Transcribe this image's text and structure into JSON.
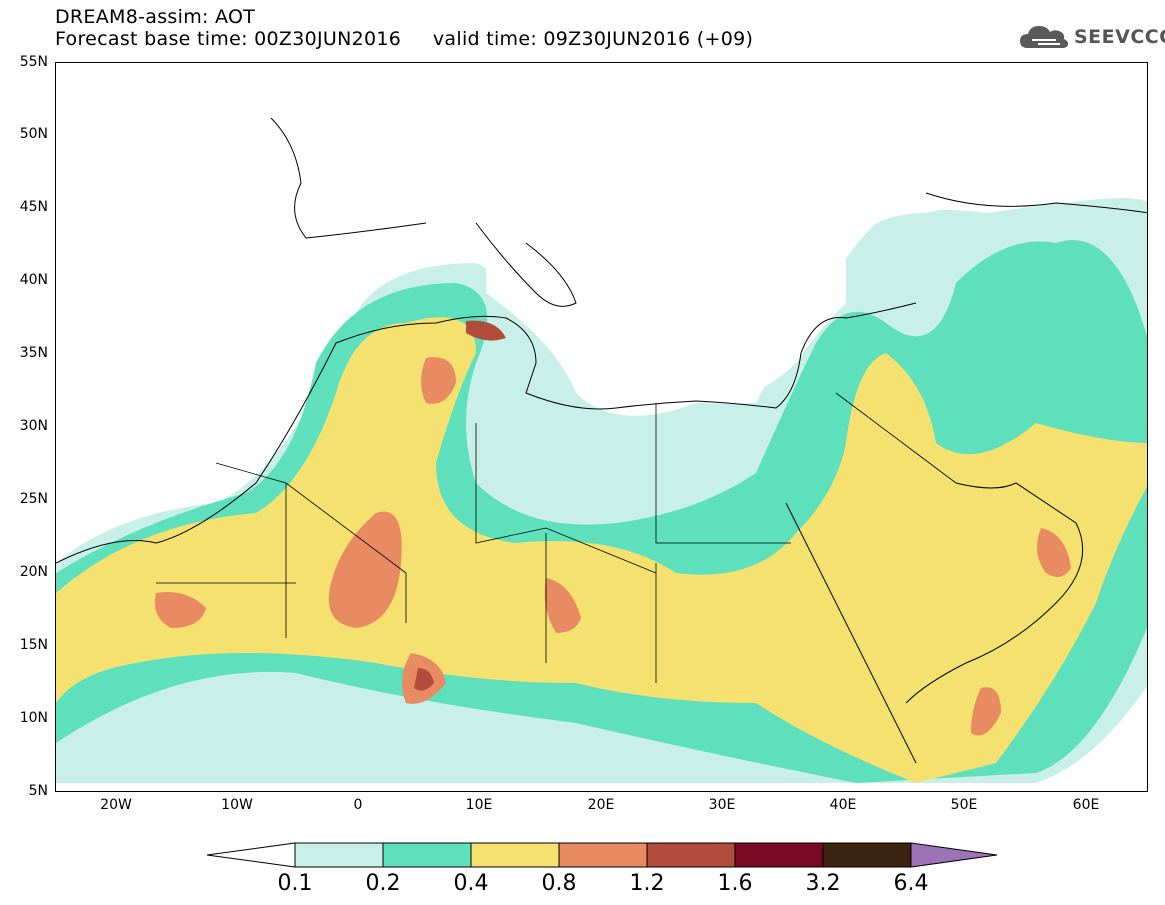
{
  "header": {
    "line1": "DREAM8-assim: AOT",
    "line2": "Forecast base time: 00Z30JUN2016     valid time: 09Z30JUN2016 (+09)"
  },
  "logo": {
    "text": "SEEVCCC",
    "icon": "cloud-icon",
    "color": "#555555"
  },
  "map": {
    "projection": "lat-lon",
    "lon_range": [
      -25,
      65
    ],
    "lat_range": [
      5,
      55
    ],
    "lat_labels": [
      "5N",
      "10N",
      "15N",
      "20N",
      "25N",
      "30N",
      "35N",
      "40N",
      "45N",
      "50N",
      "55N"
    ],
    "lon_labels": [
      "20W",
      "10W",
      "0",
      "10E",
      "20E",
      "30E",
      "40E",
      "50E",
      "60E"
    ]
  },
  "legend": {
    "labels": [
      "0.1",
      "0.2",
      "0.4",
      "0.8",
      "1.2",
      "1.6",
      "3.2",
      "6.4"
    ],
    "colors": [
      "#c8f0e8",
      "#5ee0bc",
      "#f5e170",
      "#e88a62",
      "#b24c3c",
      "#7a0a24",
      "#3c2310",
      "#9d73b8"
    ],
    "under_color": "#ffffff"
  }
}
